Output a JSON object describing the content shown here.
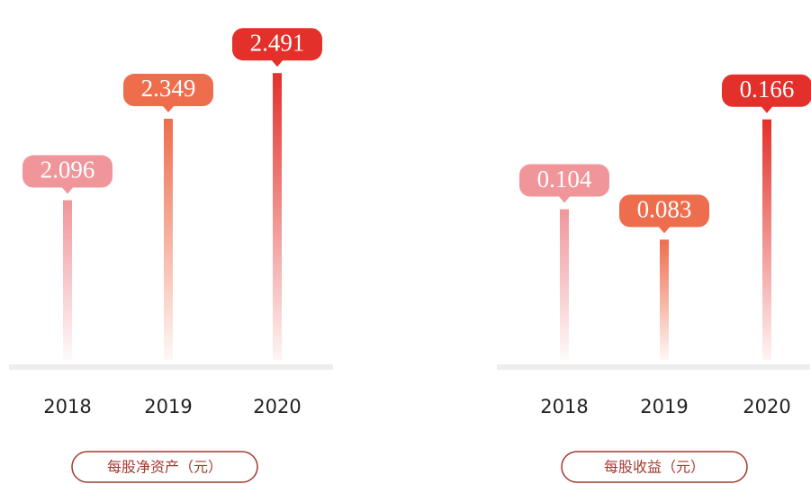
{
  "chart_data": [
    {
      "type": "bar",
      "title": "每股净资产（元）",
      "categories": [
        "2018",
        "2019",
        "2020"
      ],
      "values": [
        2.096,
        2.349,
        2.491
      ],
      "colors": [
        "#f0969a",
        "#ee6d4c",
        "#e4302a"
      ],
      "ylim": [
        1.6,
        2.5
      ]
    },
    {
      "type": "bar",
      "title": "每股收益（元）",
      "categories": [
        "2018",
        "2019",
        "2020"
      ],
      "values": [
        0.104,
        0.083,
        0.166
      ],
      "colors": [
        "#f0969a",
        "#ee6d4c",
        "#e4302a"
      ],
      "ylim": [
        0,
        0.2
      ]
    }
  ]
}
